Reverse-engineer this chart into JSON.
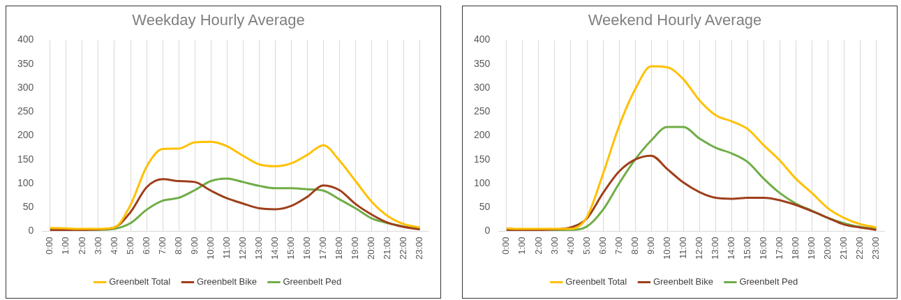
{
  "chart_data": [
    {
      "type": "line",
      "title": "Weekday Hourly Average",
      "categories": [
        "0:00",
        "1:00",
        "2:00",
        "3:00",
        "4:00",
        "5:00",
        "6:00",
        "7:00",
        "8:00",
        "9:00",
        "10:00",
        "11:00",
        "12:00",
        "13:00",
        "14:00",
        "15:00",
        "16:00",
        "17:00",
        "18:00",
        "19:00",
        "20:00",
        "21:00",
        "22:00",
        "23:00"
      ],
      "series": [
        {
          "name": "Greenbelt Total",
          "color": "#ffc000",
          "values": [
            7,
            6,
            5,
            5,
            8,
            55,
            135,
            172,
            173,
            186,
            187,
            178,
            158,
            140,
            136,
            142,
            160,
            180,
            148,
            105,
            62,
            32,
            15,
            8
          ]
        },
        {
          "name": "Greenbelt Bike",
          "color": "#9e3f1b",
          "values": [
            3,
            3,
            3,
            4,
            8,
            40,
            92,
            109,
            105,
            103,
            85,
            69,
            58,
            48,
            46,
            53,
            72,
            96,
            86,
            57,
            35,
            18,
            9,
            4
          ]
        },
        {
          "name": "Greenbelt Ped",
          "color": "#70ad47",
          "values": [
            4,
            4,
            3,
            3,
            5,
            17,
            45,
            64,
            70,
            86,
            105,
            110,
            103,
            95,
            90,
            90,
            88,
            85,
            67,
            48,
            27,
            17,
            10,
            5
          ]
        }
      ],
      "ylim": [
        0,
        400
      ],
      "yticks": [
        0,
        50,
        100,
        150,
        200,
        250,
        300,
        350,
        400
      ],
      "grid": "x",
      "legend": "bottom",
      "marker": "none"
    },
    {
      "type": "line",
      "title": "Weekend Hourly Average",
      "categories": [
        "0:00",
        "1:00",
        "2:00",
        "3:00",
        "4:00",
        "5:00",
        "6:00",
        "7:00",
        "8:00",
        "9:00",
        "10:00",
        "11:00",
        "12:00",
        "13:00",
        "14:00",
        "15:00",
        "16:00",
        "17:00",
        "18:00",
        "19:00",
        "20:00",
        "21:00",
        "22:00",
        "23:00"
      ],
      "series": [
        {
          "name": "Greenbelt Total",
          "color": "#ffc000",
          "values": [
            6,
            5,
            5,
            5,
            5,
            30,
            120,
            220,
            297,
            345,
            343,
            318,
            274,
            243,
            230,
            214,
            180,
            148,
            110,
            80,
            48,
            28,
            15,
            8
          ]
        },
        {
          "name": "Greenbelt Bike",
          "color": "#9e3f1b",
          "values": [
            3,
            3,
            3,
            4,
            8,
            27,
            80,
            125,
            150,
            158,
            130,
            102,
            82,
            70,
            68,
            70,
            70,
            65,
            55,
            42,
            28,
            14,
            8,
            3
          ]
        },
        {
          "name": "Greenbelt Ped",
          "color": "#70ad47",
          "values": [
            5,
            4,
            4,
            3,
            3,
            10,
            45,
            100,
            150,
            190,
            218,
            218,
            194,
            175,
            163,
            145,
            110,
            80,
            58,
            43,
            28,
            17,
            9,
            5
          ]
        }
      ],
      "ylim": [
        0,
        400
      ],
      "yticks": [
        0,
        50,
        100,
        150,
        200,
        250,
        300,
        350,
        400
      ],
      "grid": "x",
      "legend": "bottom",
      "marker": "none"
    }
  ]
}
